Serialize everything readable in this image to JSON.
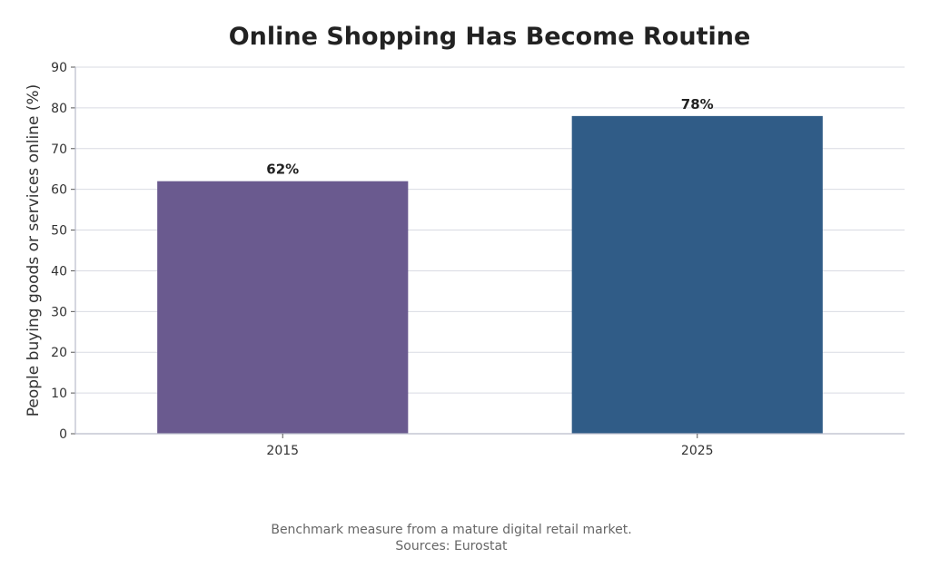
{
  "chart_data": {
    "type": "bar",
    "title": "Online Shopping Has Become Routine",
    "xlabel": "",
    "ylabel": "People buying goods or services online (%)",
    "categories": [
      "2015",
      "2025"
    ],
    "values": [
      62,
      78
    ],
    "data_labels": [
      "62%",
      "78%"
    ],
    "colors": [
      "#6a5a8f",
      "#305c87"
    ],
    "ylim": [
      0,
      90
    ],
    "yticks": [
      0,
      10,
      20,
      30,
      40,
      50,
      60,
      70,
      80,
      90
    ],
    "grid": true,
    "legend": "none"
  },
  "footnote": {
    "line1": "Benchmark measure from a mature digital retail market.",
    "line2": "Sources: Eurostat"
  }
}
